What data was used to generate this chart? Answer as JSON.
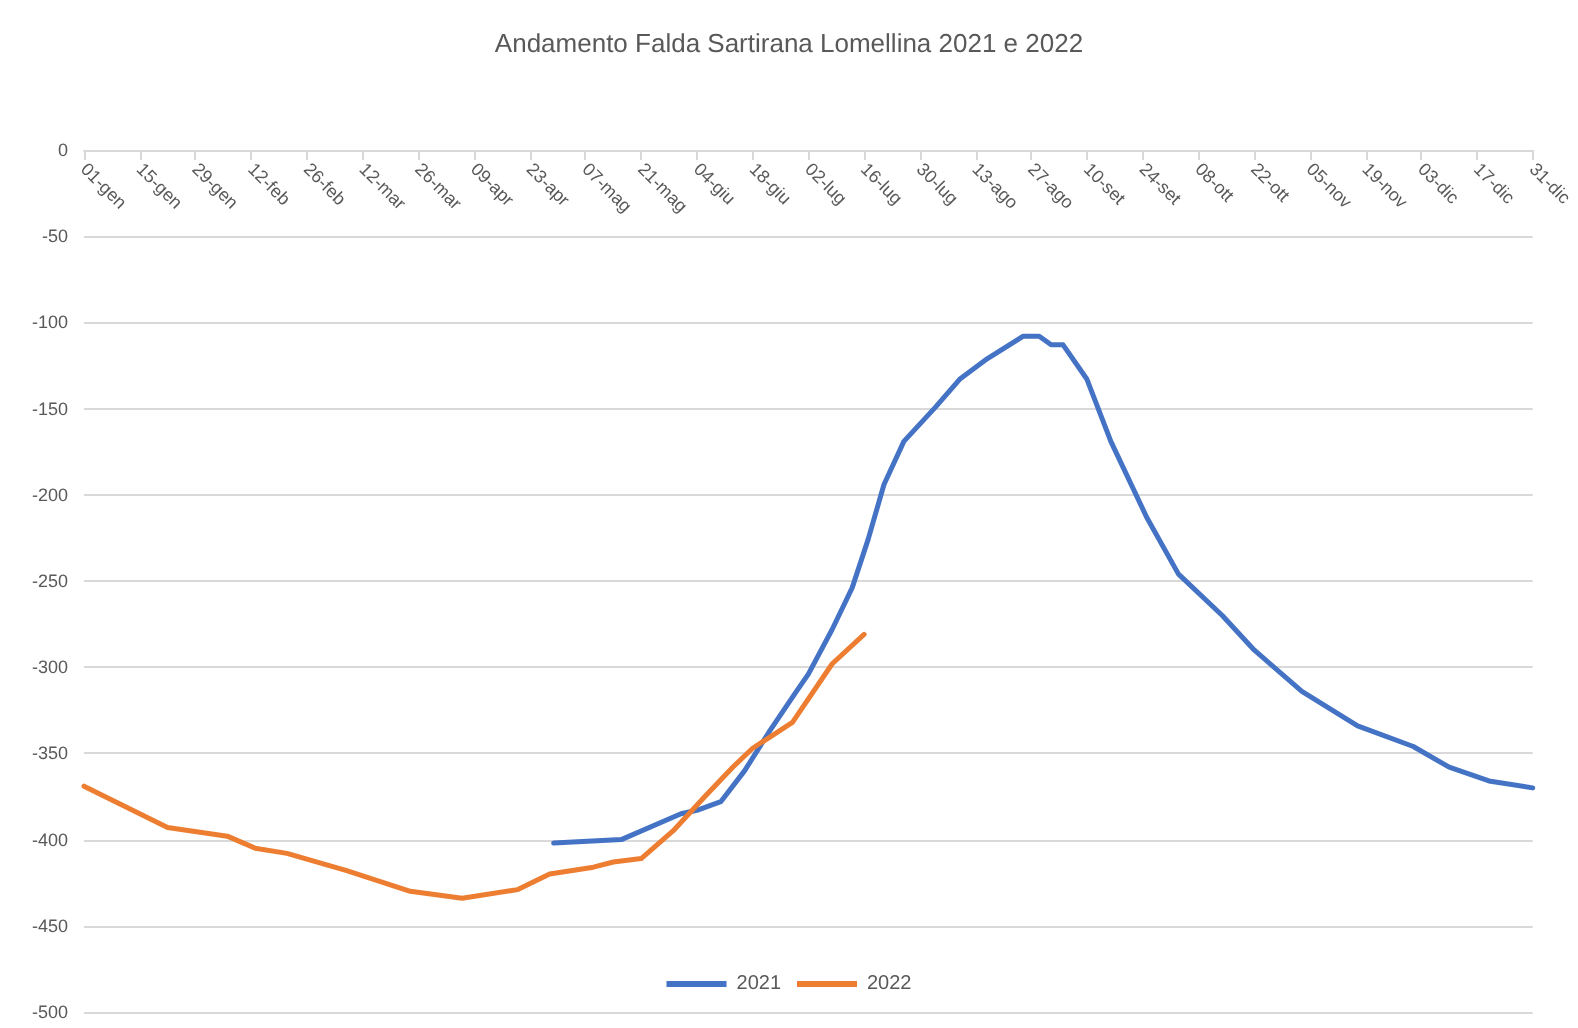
{
  "chart_data": {
    "type": "line",
    "title": "Andamento Falda Sartirana Lomellina 2021 e 2022",
    "xlim": [
      "--01-01",
      "--12-31"
    ],
    "xticks": [
      {
        "value": "--01-01",
        "label": "01-gen"
      },
      {
        "value": "--01-15",
        "label": "15-gen"
      },
      {
        "value": "--01-29",
        "label": "29-gen"
      },
      {
        "value": "--02-12",
        "label": "12-feb"
      },
      {
        "value": "--02-26",
        "label": "26-feb"
      },
      {
        "value": "--03-12",
        "label": "12-mar"
      },
      {
        "value": "--03-26",
        "label": "26-mar"
      },
      {
        "value": "--04-09",
        "label": "09-apr"
      },
      {
        "value": "--04-23",
        "label": "23-apr"
      },
      {
        "value": "--05-07",
        "label": "07-mag"
      },
      {
        "value": "--05-21",
        "label": "21-mag"
      },
      {
        "value": "--06-04",
        "label": "04-giu"
      },
      {
        "value": "--06-18",
        "label": "18-giu"
      },
      {
        "value": "--07-02",
        "label": "02-lug"
      },
      {
        "value": "--07-16",
        "label": "16-lug"
      },
      {
        "value": "--07-30",
        "label": "30-lug"
      },
      {
        "value": "--08-13",
        "label": "13-ago"
      },
      {
        "value": "--08-27",
        "label": "27-ago"
      },
      {
        "value": "--09-10",
        "label": "10-set"
      },
      {
        "value": "--09-24",
        "label": "24-set"
      },
      {
        "value": "--10-08",
        "label": "08-ott"
      },
      {
        "value": "--10-22",
        "label": "22-ott"
      },
      {
        "value": "--11-05",
        "label": "05-nov"
      },
      {
        "value": "--11-19",
        "label": "19-nov"
      },
      {
        "value": "--12-03",
        "label": "03-dic"
      },
      {
        "value": "--12-17",
        "label": "17-dic"
      },
      {
        "value": "--12-31",
        "label": "31-dic"
      }
    ],
    "ylim": [
      -500,
      0
    ],
    "yticks": [
      -500,
      -450,
      -400,
      -350,
      -300,
      -250,
      -200,
      -150,
      -100,
      -50,
      0
    ],
    "grid": "y",
    "legend": "bottom",
    "marker": "none",
    "series": [
      {
        "name": "2021",
        "color": "#4472c4",
        "x": [
          "--04-29",
          "--05-16",
          "--05-31",
          "--06-04",
          "--06-10",
          "--06-16",
          "--06-22",
          "--06-29",
          "--07-02",
          "--07-08",
          "--07-13",
          "--07-17",
          "--07-21",
          "--07-26",
          "--08-03",
          "--08-09",
          "--08-16",
          "--08-25",
          "--08-29",
          "--09-01",
          "--09-04",
          "--09-10",
          "--09-16",
          "--09-25",
          "--10-03",
          "--10-14",
          "--10-22",
          "--11-03",
          "--11-17",
          "--12-01",
          "--12-10",
          "--12-20",
          "--12-31"
        ],
        "values": [
          -402,
          -400,
          -385,
          -383,
          -378,
          -360,
          -338,
          -314,
          -304,
          -278,
          -254,
          -226,
          -194,
          -169,
          -149,
          -133,
          -121,
          -108,
          -108,
          -113,
          -113,
          -133,
          -169,
          -213,
          -246,
          -270,
          -290,
          -314,
          -334,
          -346,
          -358,
          -366,
          -370
        ]
      },
      {
        "name": "2022",
        "color": "#ed7d31",
        "x": [
          "--01-01",
          "--01-22",
          "--02-06",
          "--02-13",
          "--02-21",
          "--03-08",
          "--03-24",
          "--04-06",
          "--04-20",
          "--04-28",
          "--05-09",
          "--05-14",
          "--05-21",
          "--05-29",
          "--06-06",
          "--06-13",
          "--06-18",
          "--06-28",
          "--07-08",
          "--07-16"
        ],
        "values": [
          -369,
          -393,
          -398,
          -405,
          -408,
          -418,
          -430,
          -434,
          -429,
          -420,
          -416,
          -413,
          -411,
          -395,
          -375,
          -358,
          -347,
          -332,
          -298,
          -281
        ]
      }
    ]
  }
}
